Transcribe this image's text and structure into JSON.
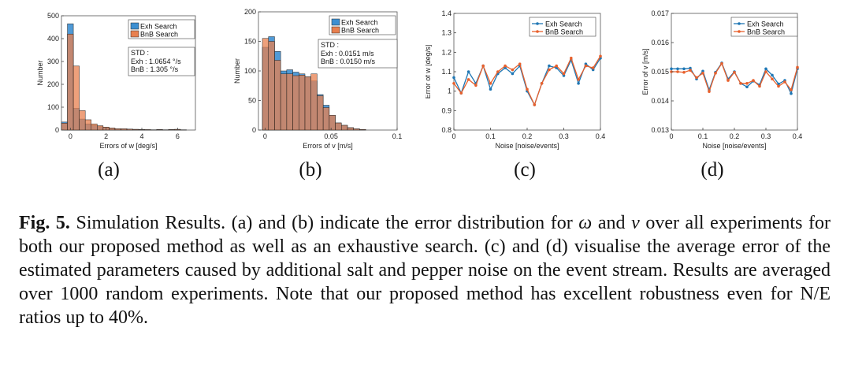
{
  "chart_data": [
    {
      "type": "bar",
      "panel": "(a)",
      "xlabel": "Errors of w [deg/s]",
      "ylabel": "Number",
      "xlim": [
        -0.5,
        7
      ],
      "ylim": [
        0,
        500
      ],
      "xticks": [
        "0",
        "2",
        "4",
        "6"
      ],
      "xtick_values": [
        0,
        2,
        4,
        6
      ],
      "yticks": [
        "0",
        "100",
        "200",
        "300",
        "400",
        "500"
      ],
      "yticks_values": [
        0,
        100,
        200,
        300,
        400,
        500
      ],
      "bin_start": -0.5,
      "bin_width": 0.333,
      "series": [
        {
          "name": "Exh Search",
          "color": "#3d8fd1",
          "values": [
            35,
            465,
            95,
            48,
            27,
            20,
            15,
            12,
            8,
            5,
            6,
            4,
            3,
            2,
            1,
            1,
            2,
            1,
            2,
            3,
            1,
            0
          ]
        },
        {
          "name": "BnB Search",
          "color": "#e8804f",
          "values": [
            30,
            420,
            280,
            85,
            45,
            27,
            19,
            13,
            9,
            6,
            6,
            4,
            3,
            2,
            2,
            1,
            2,
            1,
            2,
            3,
            1,
            0
          ]
        }
      ],
      "legend_position": "top-right",
      "annotation": {
        "title": "STD :",
        "lines": [
          "Exh : 1.0654 °/s",
          "BnB : 1.305 °/s"
        ]
      }
    },
    {
      "type": "bar",
      "panel": "(b)",
      "xlabel": "Errors of v [m/s]",
      "ylabel": "Number",
      "xlim": [
        -0.005,
        0.1
      ],
      "ylim": [
        0,
        200
      ],
      "xticks": [
        "0",
        "0.05",
        "0.1"
      ],
      "xtick_values": [
        0,
        0.05,
        0.1
      ],
      "yticks": [
        "0",
        "50",
        "100",
        "150",
        "200"
      ],
      "yticks_values": [
        0,
        50,
        100,
        150,
        200
      ],
      "bin_start": -0.002,
      "bin_width": 0.0046,
      "series": [
        {
          "name": "Exh Search",
          "color": "#3d8fd1",
          "values": [
            140,
            158,
            133,
            100,
            102,
            98,
            95,
            90,
            83,
            60,
            42,
            25,
            12,
            8,
            4,
            2,
            1,
            0
          ]
        },
        {
          "name": "BnB Search",
          "color": "#e8804f",
          "values": [
            155,
            150,
            118,
            95,
            95,
            92,
            93,
            90,
            95,
            58,
            38,
            25,
            12,
            8,
            4,
            2,
            1,
            0
          ]
        }
      ],
      "legend_position": "top-right",
      "annotation": {
        "title": "STD :",
        "lines": [
          "Exh : 0.0151 m/s",
          "BnB : 0.0150 m/s"
        ]
      }
    },
    {
      "type": "line",
      "panel": "(c)",
      "xlabel": "Noise [noise/events]",
      "ylabel": "Error of w [deg/s]",
      "xlim": [
        0,
        0.4
      ],
      "ylim": [
        0.8,
        1.4
      ],
      "xticks": [
        "0",
        "0.1",
        "0.2",
        "0.3",
        "0.4"
      ],
      "xtick_values": [
        0,
        0.1,
        0.2,
        0.3,
        0.4
      ],
      "yticks": [
        "0.8",
        "0.9",
        "1",
        "1.1",
        "1.2",
        "1.3",
        "1.4"
      ],
      "yticks_values": [
        0.8,
        0.9,
        1.0,
        1.1,
        1.2,
        1.3,
        1.4
      ],
      "x": [
        0,
        0.02,
        0.04,
        0.06,
        0.08,
        0.1,
        0.12,
        0.14,
        0.16,
        0.18,
        0.2,
        0.22,
        0.24,
        0.26,
        0.28,
        0.3,
        0.32,
        0.34,
        0.36,
        0.38,
        0.4
      ],
      "series": [
        {
          "name": "Exh Search",
          "color": "#1f77b4",
          "values": [
            1.07,
            0.99,
            1.1,
            1.04,
            1.13,
            1.01,
            1.09,
            1.12,
            1.09,
            1.13,
            1.0,
            0.93,
            1.04,
            1.13,
            1.12,
            1.08,
            1.16,
            1.04,
            1.14,
            1.11,
            1.17
          ]
        },
        {
          "name": "BnB Search",
          "color": "#e8602c",
          "values": [
            1.04,
            0.99,
            1.06,
            1.03,
            1.13,
            1.04,
            1.1,
            1.13,
            1.11,
            1.14,
            1.01,
            0.93,
            1.04,
            1.11,
            1.13,
            1.09,
            1.17,
            1.06,
            1.13,
            1.12,
            1.18
          ]
        }
      ],
      "legend_position": "top-right"
    },
    {
      "type": "line",
      "panel": "(d)",
      "xlabel": "Noise [noise/events]",
      "ylabel": "Error of v [m/s]",
      "xlim": [
        0,
        0.4
      ],
      "ylim": [
        0.013,
        0.017
      ],
      "xticks": [
        "0",
        "0.1",
        "0.2",
        "0.3",
        "0.4"
      ],
      "xtick_values": [
        0,
        0.1,
        0.2,
        0.3,
        0.4
      ],
      "yticks": [
        "0.013",
        "0.014",
        "0.015",
        "0.016",
        "0.017"
      ],
      "yticks_values": [
        0.013,
        0.014,
        0.015,
        0.016,
        0.017
      ],
      "x": [
        0,
        0.02,
        0.04,
        0.06,
        0.08,
        0.1,
        0.12,
        0.14,
        0.16,
        0.18,
        0.2,
        0.22,
        0.24,
        0.26,
        0.28,
        0.3,
        0.32,
        0.34,
        0.36,
        0.38,
        0.4
      ],
      "series": [
        {
          "name": "Exh Search",
          "color": "#1f77b4",
          "values": [
            0.0151,
            0.0151,
            0.0151,
            0.01512,
            0.01475,
            0.01502,
            0.01438,
            0.01498,
            0.0153,
            0.01475,
            0.015,
            0.0146,
            0.01448,
            0.01468,
            0.01455,
            0.0151,
            0.01488,
            0.01458,
            0.0147,
            0.01425,
            0.0151
          ]
        },
        {
          "name": "BnB Search",
          "color": "#e8602c",
          "values": [
            0.015,
            0.015,
            0.01498,
            0.01505,
            0.0148,
            0.01495,
            0.01432,
            0.01495,
            0.01528,
            0.0147,
            0.01498,
            0.0146,
            0.0146,
            0.0147,
            0.0145,
            0.015,
            0.01475,
            0.0145,
            0.01465,
            0.01438,
            0.01515
          ]
        }
      ],
      "legend_position": "top-right"
    }
  ],
  "panel_labels": [
    "(a)",
    "(b)",
    "(c)",
    "(d)"
  ],
  "caption": {
    "figno": "Fig. 5.",
    "t1": " Simulation Results. (a) and (b) indicate the error distribution for ",
    "omega": "ω",
    "t2": " and ",
    "v": "v",
    "t3": " over all experiments for both our proposed method as well as an exhaustive search. (c) and (d) visualise the average error of the estimated parameters caused by additional salt and pepper noise on the event stream. Results are averaged over 1000 random experiments. Note that our proposed method has excellent robustness even for N/E ratios up to 40%."
  }
}
